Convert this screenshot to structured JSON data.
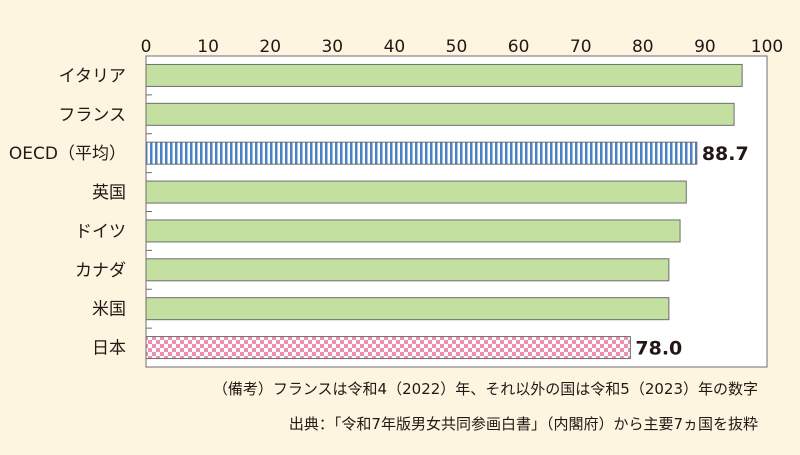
{
  "chart_data": {
    "type": "bar",
    "orientation": "horizontal",
    "xlim": [
      0,
      100
    ],
    "x_ticks": [
      "0",
      "10",
      "20",
      "30",
      "40",
      "50",
      "60",
      "70",
      "80",
      "90",
      "100"
    ],
    "categories": [
      "イタリア",
      "フランス",
      "OECD（平均）",
      "英国",
      "ドイツ",
      "カナダ",
      "米国",
      "日本"
    ],
    "values": [
      96.0,
      94.7,
      88.7,
      87.0,
      86.0,
      84.2,
      84.2,
      78.0
    ],
    "data_labels": [
      "",
      "",
      "88.7",
      "",
      "",
      "",
      "",
      "78.0"
    ],
    "grid": false,
    "legend": "none",
    "colors": {
      "default_fill": "#c4e0a0",
      "default_stroke": "#6d6d6d",
      "oecd_stripe": "#4b82c3",
      "japan_check": "#ec8fb1",
      "plot_bg": "#ffffff",
      "axis": "#6d6d6d"
    },
    "patterns": [
      "solid",
      "solid",
      "vertical-stripes",
      "solid",
      "solid",
      "solid",
      "solid",
      "checker"
    ]
  },
  "notes": {
    "remarks": "（備考）フランスは令和4（2022）年、それ以外の国は令和5（2023）年の数字",
    "source": "出典：「令和7年版男女共同参画白書」（内閣府）から主要7ヵ国を抜粋"
  }
}
